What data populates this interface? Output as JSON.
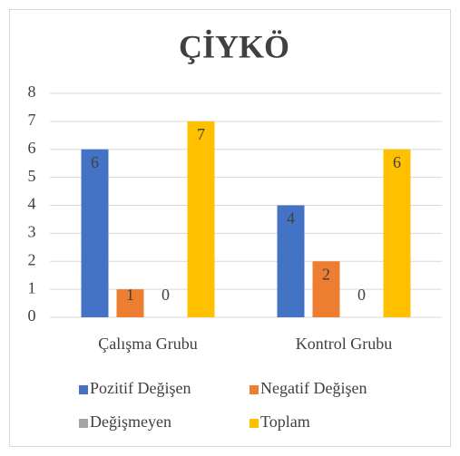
{
  "chart_data": {
    "type": "bar",
    "title": "ÇİYKÖ",
    "categories": [
      "Çalışma Grubu",
      "Kontrol Grubu"
    ],
    "series": [
      {
        "name": "Pozitif Değişen",
        "color": "#4472c4",
        "values": [
          6,
          4
        ]
      },
      {
        "name": "Negatif Değişen",
        "color": "#ed7d31",
        "values": [
          1,
          2
        ]
      },
      {
        "name": "Değişmeyen",
        "color": "#a5a5a5",
        "values": [
          0,
          0
        ]
      },
      {
        "name": "Toplam",
        "color": "#ffc000",
        "values": [
          7,
          6
        ]
      }
    ],
    "ylim": [
      0,
      8
    ],
    "yticks": [
      0,
      1,
      2,
      3,
      4,
      5,
      6,
      7,
      8
    ],
    "grid": true,
    "legend": "bottom"
  }
}
